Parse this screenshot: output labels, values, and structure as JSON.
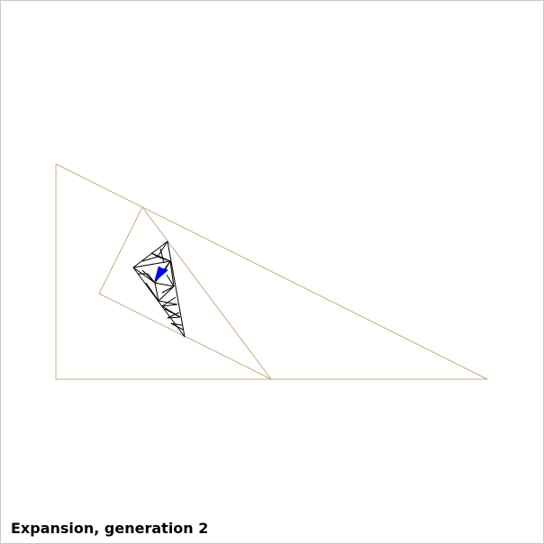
{
  "caption": "Expansion, generation 2",
  "colors": {
    "outline": "#c8aa82",
    "tiling": "#000000",
    "highlight": "#0000ff",
    "background": "#ffffff",
    "border": "#c8c8c8"
  }
}
